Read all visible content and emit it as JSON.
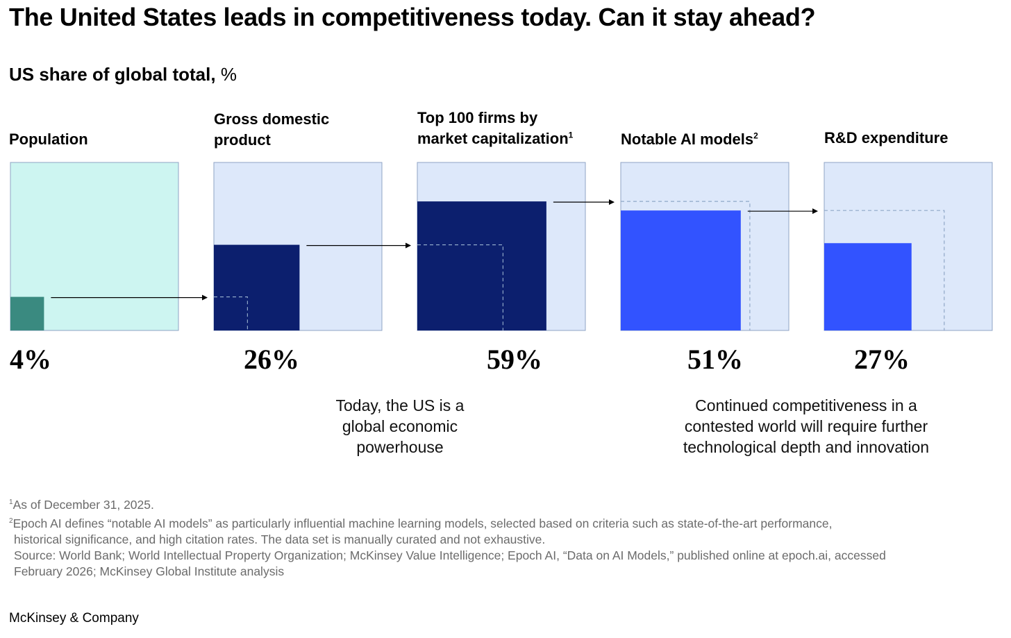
{
  "title": "The United States leads in competitiveness today. Can it stay ahead?",
  "subtitle": {
    "main": "US share of global total,",
    "unit": "%"
  },
  "chart_data": {
    "type": "area",
    "title": "The United States leads in competitiveness today. Can it stay ahead?",
    "ylabel": "US share of global total, %",
    "ylim": [
      0,
      100
    ],
    "categories": [
      "Population",
      "Gross domestic product",
      "Top 100 firms by market capitalization",
      "Notable AI models",
      "R&D expenditure"
    ],
    "values": [
      4,
      26,
      59,
      51,
      27
    ],
    "labels": [
      "4%",
      "26%",
      "59%",
      "51%",
      "27%"
    ],
    "footnote_refs": [
      "",
      "",
      "1",
      "2",
      ""
    ],
    "colors": {
      "population_bg": "#cdf5f1",
      "population_fill": "#3a8a80",
      "bg": "#dde8fa",
      "economic_fill": "#0c1f6e",
      "tech_fill": "#3253ff",
      "dashed": "#8fa7c7",
      "border": "#8fa3c4"
    }
  },
  "panels": [
    {
      "line1": "Population",
      "line2": ""
    },
    {
      "line1": "Gross domestic",
      "line2": "product"
    },
    {
      "line1": "Top 100 firms by",
      "line2": "market capitalization",
      "sup": "1"
    },
    {
      "line1": "Notable AI models",
      "line2": "",
      "sup": "2"
    },
    {
      "line1": "R&D expenditure",
      "line2": ""
    }
  ],
  "notes": {
    "left": [
      "Today, the US is a",
      "global economic",
      "powerhouse"
    ],
    "right": [
      "Continued competitiveness in a",
      "contested world will require further",
      "technological depth and innovation"
    ]
  },
  "footnotes": {
    "f1_num": "1",
    "f1": "As of December 31, 2025.",
    "f2_num": "2",
    "f2_line1": "Epoch AI defines “notable AI models” as particularly influential machine learning models, selected based on criteria such as state-of-the-art performance,",
    "f2_line2": "historical significance, and high citation rates. The data set is manually curated and not exhaustive.",
    "source_line1": "Source: World Bank; World Intellectual Property Organization; McKinsey Value Intelligence; Epoch AI, “Data on AI Models,” published online at epoch.ai, accessed",
    "source_line2": "February 2026; McKinsey Global Institute analysis"
  },
  "brand": "McKinsey & Company"
}
